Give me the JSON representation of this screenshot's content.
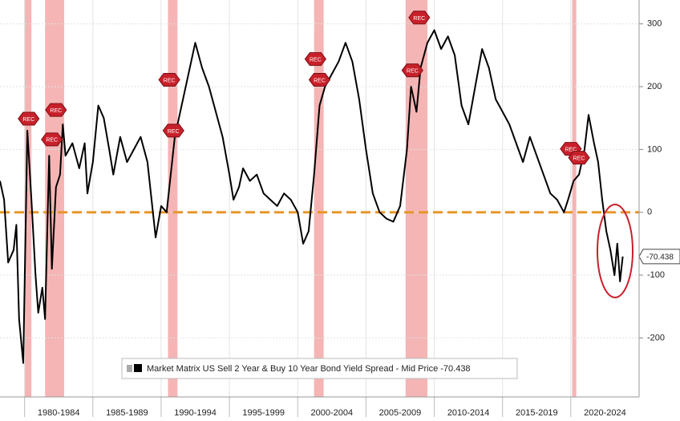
{
  "chart_data": {
    "type": "line",
    "series": [
      {
        "name": "Market Matrix US Sell 2 Year & Buy 10 Year Bond Yield Spread - Mid Price -70.438",
        "color": "#000000",
        "values": [
          50,
          20,
          -80,
          -60,
          -20,
          -170,
          -240,
          130,
          20,
          -100,
          -160,
          -120,
          -170,
          90,
          -90,
          40,
          60,
          140,
          90,
          110,
          70,
          110,
          30,
          80,
          170,
          150,
          100,
          60,
          120,
          80,
          100,
          120,
          80,
          20,
          -40,
          10,
          0,
          60,
          120,
          170,
          220,
          270,
          230,
          200,
          160,
          120,
          60,
          20,
          40,
          70,
          50,
          60,
          30,
          20,
          10,
          30,
          20,
          0,
          -50,
          -30,
          60,
          170,
          200,
          220,
          240,
          270,
          240,
          180,
          100,
          30,
          0,
          -10,
          -15,
          10,
          100,
          200,
          160,
          230,
          270,
          290,
          260,
          280,
          250,
          170,
          140,
          200,
          260,
          230,
          180,
          160,
          140,
          110,
          80,
          120,
          90,
          60,
          30,
          20,
          0,
          20,
          50,
          60,
          100,
          155,
          110,
          80,
          20,
          -30,
          -60,
          -100,
          -50,
          -110,
          -70.438
        ]
      }
    ],
    "x": [
      1978.2,
      1978.5,
      1978.8,
      1979.2,
      1979.4,
      1979.6,
      1979.9,
      1980.2,
      1980.5,
      1980.8,
      1981.0,
      1981.3,
      1981.5,
      1981.8,
      1982.0,
      1982.3,
      1982.6,
      1982.8,
      1983.0,
      1983.5,
      1984.0,
      1984.4,
      1984.6,
      1985.0,
      1985.4,
      1985.8,
      1986.2,
      1986.5,
      1987.0,
      1987.5,
      1988.0,
      1988.5,
      1989.0,
      1989.3,
      1989.6,
      1990.0,
      1990.4,
      1990.7,
      1991.0,
      1991.5,
      1992.0,
      1992.5,
      1993.0,
      1993.5,
      1994.0,
      1994.5,
      1995.0,
      1995.3,
      1995.7,
      1996.0,
      1996.5,
      1997.0,
      1997.5,
      1998.0,
      1998.5,
      1999.0,
      1999.5,
      2000.0,
      2000.4,
      2000.8,
      2001.2,
      2001.6,
      2002.0,
      2002.5,
      2003.0,
      2003.5,
      2004.0,
      2004.5,
      2005.0,
      2005.5,
      2006.0,
      2006.5,
      2007.0,
      2007.5,
      2008.0,
      2008.3,
      2008.7,
      2009.0,
      2009.5,
      2010.0,
      2010.5,
      2011.0,
      2011.5,
      2012.0,
      2012.5,
      2013.0,
      2013.5,
      2014.0,
      2014.5,
      2015.0,
      2015.5,
      2016.0,
      2016.5,
      2017.0,
      2017.5,
      2018.0,
      2018.5,
      2019.0,
      2019.5,
      2019.8,
      2020.2,
      2020.6,
      2021.0,
      2021.3,
      2021.7,
      2022.0,
      2022.3,
      2022.6,
      2022.9,
      2023.2,
      2023.4,
      2023.6,
      2023.8
    ],
    "xlim": [
      1978.2,
      2025.0
    ],
    "xticks": [
      {
        "value": 1982.5,
        "label": "1980-1984"
      },
      {
        "value": 1987.5,
        "label": "1985-1989"
      },
      {
        "value": 1992.5,
        "label": "1990-1994"
      },
      {
        "value": 1997.5,
        "label": "1995-1999"
      },
      {
        "value": 2002.5,
        "label": "2000-2004"
      },
      {
        "value": 2007.5,
        "label": "2005-2009"
      },
      {
        "value": 2012.5,
        "label": "2010-2014"
      },
      {
        "value": 2017.5,
        "label": "2015-2019"
      },
      {
        "value": 2022.5,
        "label": "2020-2024"
      }
    ],
    "xgrid": [
      1980,
      1985,
      1990,
      1995,
      2000,
      2005,
      2010,
      2015,
      2020
    ],
    "ylim": [
      -294,
      338
    ],
    "yticks": [
      300,
      200,
      100,
      0,
      -100,
      -200
    ],
    "grid": true,
    "reference_line": {
      "value": 0,
      "color": "#e8962a"
    },
    "recessions": [
      [
        1980.0,
        1980.5
      ],
      [
        1981.5,
        1982.9
      ],
      [
        1990.5,
        1991.2
      ],
      [
        2001.2,
        2001.9
      ],
      [
        2007.9,
        2009.5
      ],
      [
        2020.1,
        2020.4
      ]
    ],
    "recession_color": "#f5b5b5",
    "rec_markers": [
      {
        "x": 1980.3,
        "y": 149,
        "label": "REC"
      },
      {
        "x": 1982.3,
        "y": 163,
        "label": "REC"
      },
      {
        "x": 1982.0,
        "y": 116,
        "label": "REC"
      },
      {
        "x": 1990.6,
        "y": 211,
        "label": "REC"
      },
      {
        "x": 1990.9,
        "y": 130,
        "label": "REC"
      },
      {
        "x": 2001.3,
        "y": 244,
        "label": "REC"
      },
      {
        "x": 2001.6,
        "y": 211,
        "label": "REC"
      },
      {
        "x": 2008.9,
        "y": 310,
        "label": "REC"
      },
      {
        "x": 2008.4,
        "y": 226,
        "label": "REC"
      },
      {
        "x": 2020.0,
        "y": 101,
        "label": "REC"
      },
      {
        "x": 2020.6,
        "y": 87,
        "label": "REC"
      }
    ],
    "last_value": -70.438
  }
}
